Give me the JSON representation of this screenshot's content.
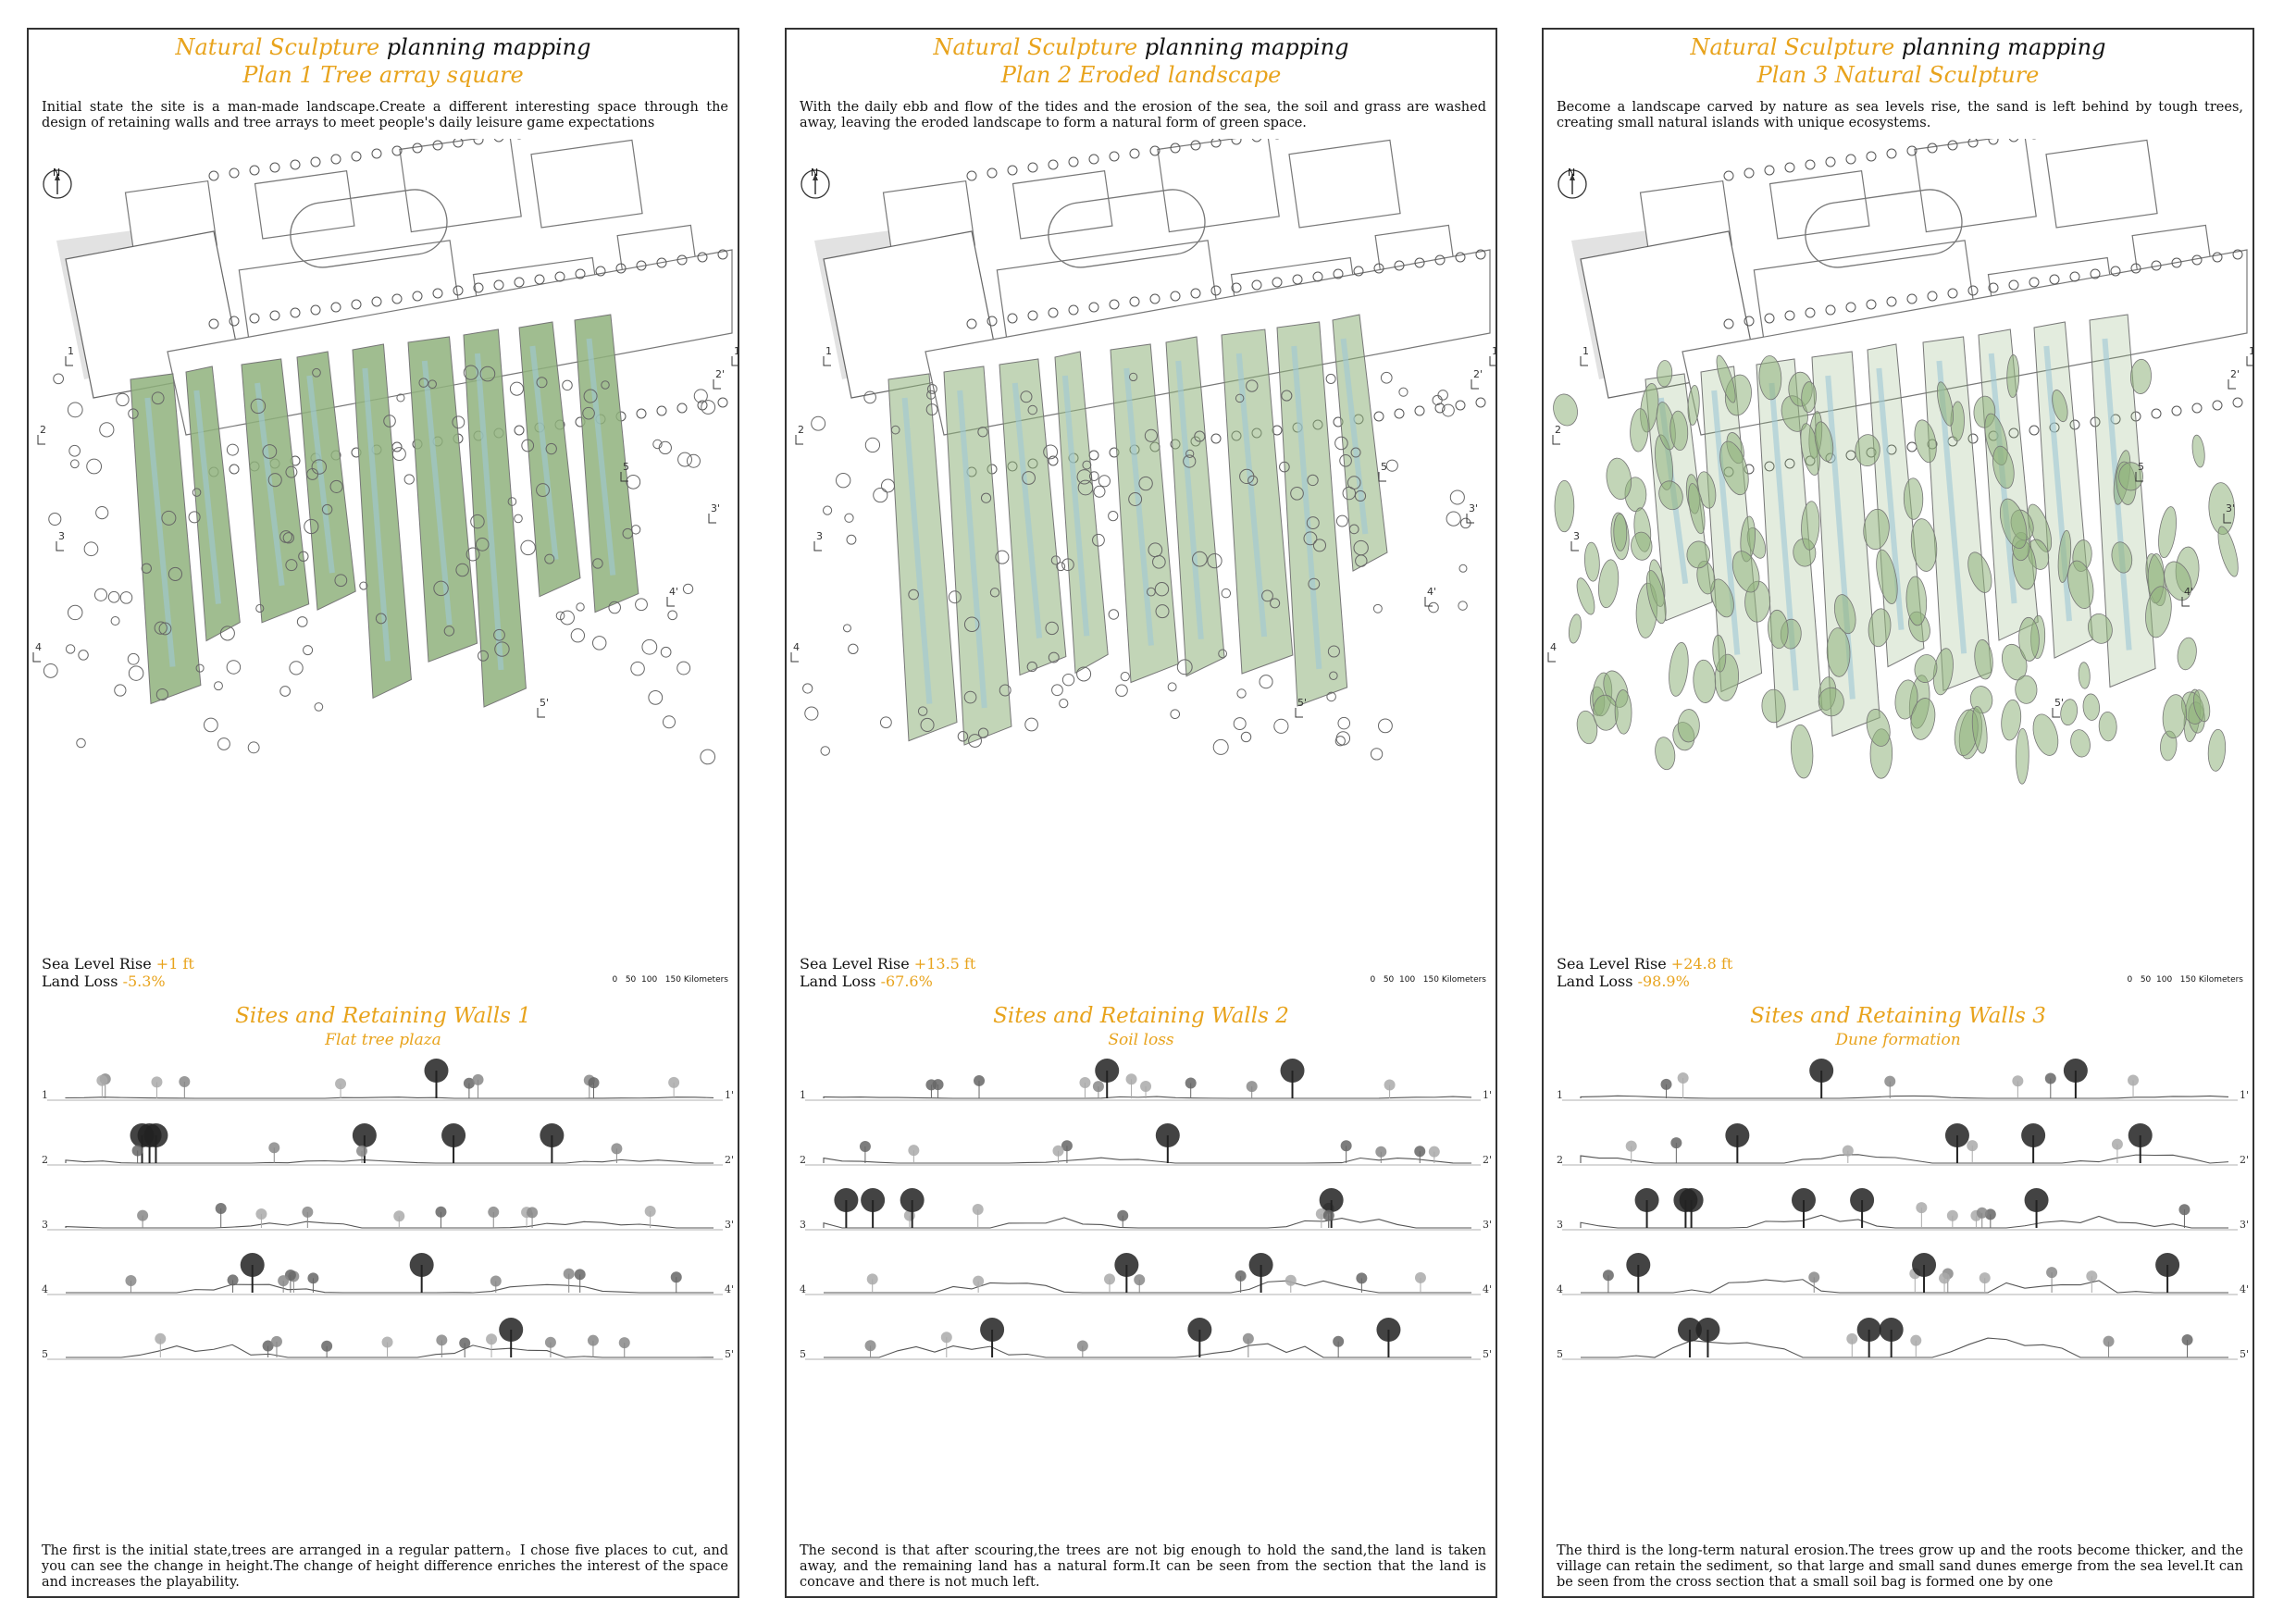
{
  "panels": [
    {
      "title_gold": "Natural Sculpture",
      "title_dark": "planning mapping",
      "subtitle": "Plan 1 Tree array square",
      "intro": "Initial state the site is a man-made landscape.Create a different interesting space through the design of retaining walls and tree arrays to meet people's daily leisure game expectations",
      "north_label": "N",
      "sea_level_label": "Sea Level Rise",
      "sea_level_value": "+1 ft",
      "land_loss_label": "Land Loss",
      "land_loss_value": "-5.3%",
      "scale_ticks": [
        "0",
        "50",
        "100",
        "150 Kilometers"
      ],
      "section_title": "Sites and Retaining Walls 1",
      "section_subtitle": "Flat tree plaza",
      "section_labels": [
        [
          "1",
          "1'"
        ],
        [
          "2",
          "2'"
        ],
        [
          "3",
          "3'"
        ],
        [
          "4",
          "4'"
        ],
        [
          "5",
          "5'"
        ]
      ],
      "outro": "The first is the initial state,trees are arranged in a regular pattern。I chose five places to cut, and you can see the change in height.The change of height difference enriches the interest of the space and increases the playability."
    },
    {
      "title_gold": "Natural Sculpture",
      "title_dark": "planning mapping",
      "subtitle": "Plan 2 Eroded landscape",
      "intro": "With the daily ebb and flow of the tides and the erosion of the sea, the soil and grass are washed away, leaving the eroded landscape to form a natural form of green space.",
      "north_label": "N",
      "sea_level_label": "Sea Level Rise",
      "sea_level_value": "+13.5 ft",
      "land_loss_label": "Land Loss",
      "land_loss_value": "-67.6%",
      "scale_ticks": [
        "0",
        "50",
        "100",
        "150 Kilometers"
      ],
      "section_title": "Sites and Retaining Walls 2",
      "section_subtitle": "Soil loss",
      "section_labels": [
        [
          "1",
          "1'"
        ],
        [
          "2",
          "2'"
        ],
        [
          "3",
          "3'"
        ],
        [
          "4",
          "4'"
        ],
        [
          "5",
          "5'"
        ]
      ],
      "outro": "The second is that after scouring,the trees are not big enough to hold the sand,the land is taken away, and the remaining land has a natural form.It can be seen from the section that the land is concave and there is not much left."
    },
    {
      "title_gold": "Natural Sculpture",
      "title_dark": "planning mapping",
      "subtitle": "Plan 3 Natural Sculpture",
      "intro": "Become a landscape carved by nature as sea levels rise, the sand is left behind by tough trees, creating small natural islands with unique ecosystems.",
      "north_label": "N",
      "sea_level_label": "Sea Level Rise",
      "sea_level_value": "+24.8 ft",
      "land_loss_label": "Land Loss",
      "land_loss_value": "-98.9%",
      "scale_ticks": [
        "0",
        "50",
        "100",
        "150 Kilometers"
      ],
      "section_title": "Sites and Retaining Walls 3",
      "section_subtitle": "Dune formation",
      "section_labels": [
        [
          "1",
          "1'"
        ],
        [
          "2",
          "2'"
        ],
        [
          "3",
          "3'"
        ],
        [
          "4",
          "4'"
        ],
        [
          "5",
          "5'"
        ]
      ],
      "outro": "The third is the long-term natural erosion.The trees grow up and the roots become thicker, and the village can retain the sediment, so that large and small sand dunes emerge from the sea level.It can be seen from the cross section that a small soil bag is formed one by one"
    }
  ],
  "map_cut_labels": [
    "1",
    "2",
    "3",
    "4",
    "5",
    "1'",
    "2'",
    "3'",
    "4'",
    "5'"
  ],
  "colors": {
    "accent": "#e8a31c",
    "green": "#8fb27c",
    "blue": "#9fc8d6",
    "line": "#555555"
  }
}
